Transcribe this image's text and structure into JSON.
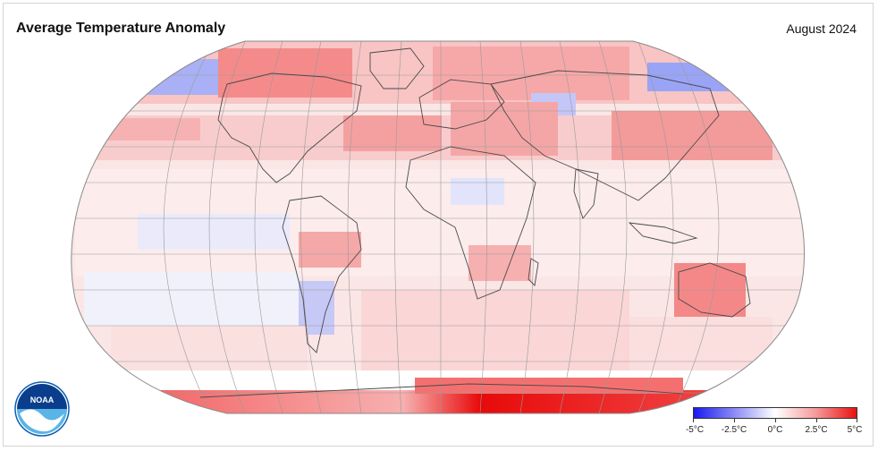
{
  "header": {
    "title": "Average Temperature Anomaly",
    "date": "August 2024"
  },
  "logo": {
    "text": "NOAA",
    "icon": "noaa-logo-icon",
    "colors": {
      "blue": "#0a5fb0",
      "light": "#5ab4e6"
    }
  },
  "legend": {
    "ticks": [
      "-5°C",
      "-2.5°C",
      "0°C",
      "2.5°C",
      "5°C"
    ],
    "colors": {
      "cold": "#1a1af0",
      "neutral": "#ffffff",
      "warm": "#ea1010"
    }
  },
  "map_colors": {
    "land_outline": "#4a4a4a",
    "graticule": "#9a9a9a",
    "ocean_default": "#fbe8e8"
  }
}
